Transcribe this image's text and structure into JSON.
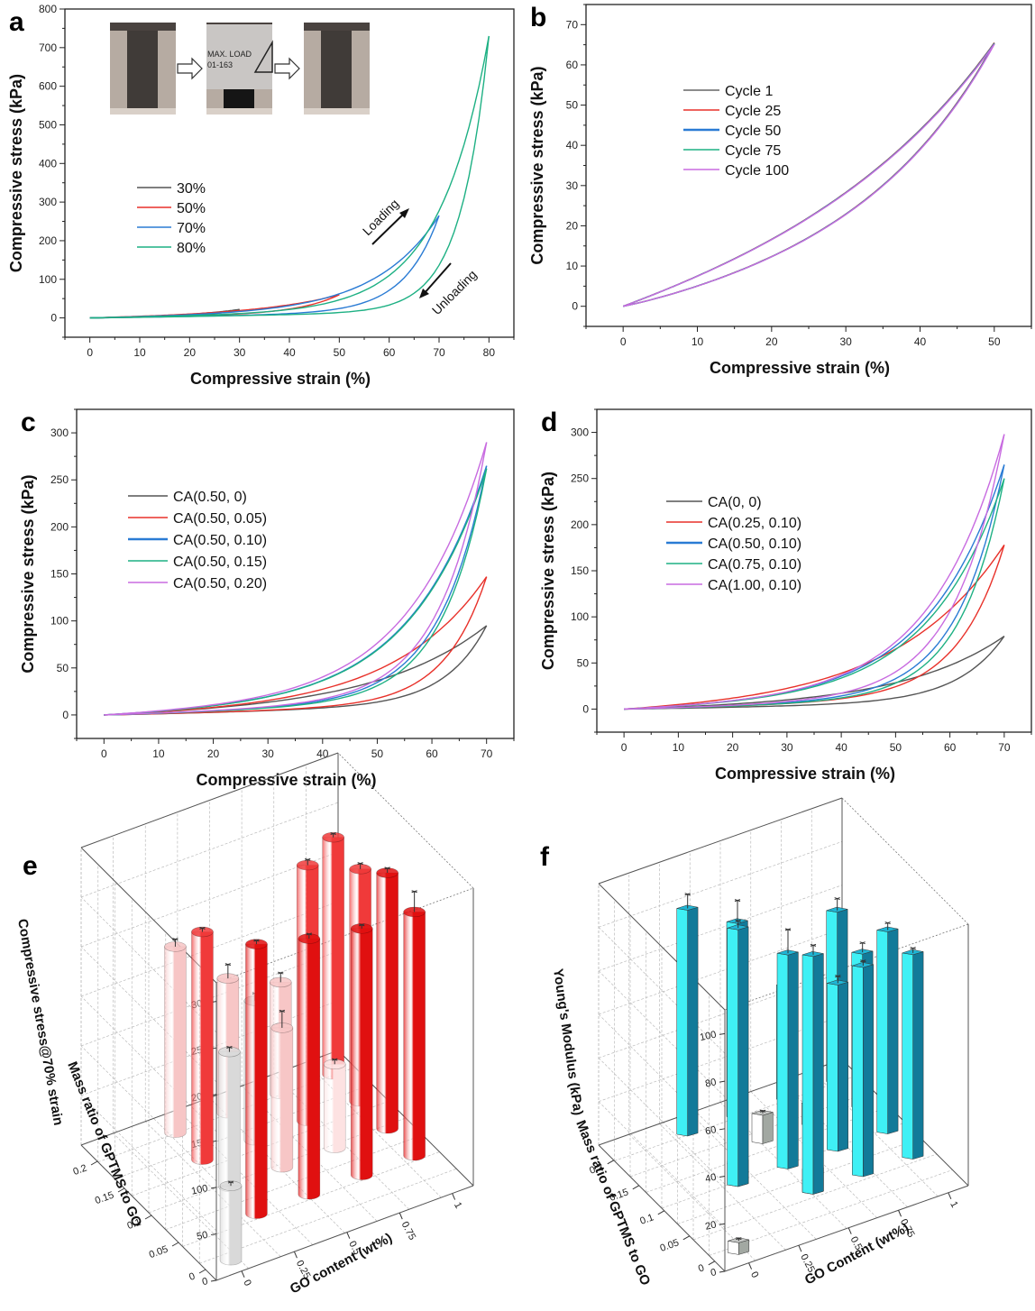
{
  "panels": [
    {
      "id": "a",
      "chart_data": {
        "type": "line",
        "panel_label": "a",
        "xlabel": "Compressive strain (%)",
        "ylabel": "Compressive stress (kPa)",
        "xlim": [
          -5,
          85
        ],
        "ylim": [
          -50,
          800
        ],
        "xticks": [
          0,
          10,
          20,
          30,
          40,
          50,
          60,
          70,
          80
        ],
        "yticks": [
          0,
          100,
          200,
          300,
          400,
          500,
          600,
          700,
          800
        ],
        "legend": {
          "placement": "center-left"
        },
        "annotations": [
          "Loading",
          "Unloading"
        ],
        "inset": {
          "description": "photo sequence of sample before, during and after compression",
          "text_lines": [
            "MAX. LOAD",
            "01-163"
          ]
        },
        "series": [
          {
            "name": "30%",
            "color": "#555555",
            "max_strain": 30,
            "peak_stress": 22,
            "loading_exp": 3.2,
            "unloading_exp": 6,
            "linear_frac": 0.35
          },
          {
            "name": "50%",
            "color": "#e8312a",
            "max_strain": 50,
            "peak_stress": 60,
            "loading_exp": 3.2,
            "unloading_exp": 6,
            "linear_frac": 0.2
          },
          {
            "name": "70%",
            "color": "#2a7bd4",
            "max_strain": 70,
            "peak_stress": 265,
            "loading_exp": 5.5,
            "unloading_exp": 10,
            "linear_frac": 0.06
          },
          {
            "name": "80%",
            "color": "#1db083",
            "max_strain": 80,
            "peak_stress": 730,
            "loading_exp": 8,
            "unloading_exp": 14,
            "linear_frac": 0.025
          }
        ]
      }
    },
    {
      "id": "b",
      "chart_data": {
        "type": "line",
        "panel_label": "b",
        "xlabel": "Compressive strain (%)",
        "ylabel": "Compressive stress (kPa)",
        "xlim": [
          -5,
          55
        ],
        "ylim": [
          -5,
          75
        ],
        "xticks": [
          0,
          10,
          20,
          30,
          40,
          50
        ],
        "yticks": [
          0,
          10,
          20,
          30,
          40,
          50,
          60,
          70
        ],
        "legend": {
          "placement": "top-left"
        },
        "series": [
          {
            "name": "Cycle 1",
            "color": "#666666",
            "max_strain": 50,
            "peak_stress": 65.5,
            "loading_exp": 2.2,
            "unloading_exp": 3,
            "linear_frac": 0.35
          },
          {
            "name": "Cycle 25",
            "color": "#e8312a",
            "max_strain": 50,
            "peak_stress": 65.4,
            "loading_exp": 2.2,
            "unloading_exp": 3,
            "linear_frac": 0.35
          },
          {
            "name": "Cycle 50",
            "color": "#2a7bd4",
            "max_strain": 50,
            "peak_stress": 65.3,
            "loading_exp": 2.2,
            "unloading_exp": 3,
            "linear_frac": 0.35
          },
          {
            "name": "Cycle 75",
            "color": "#1db083",
            "max_strain": 50,
            "peak_stress": 65.2,
            "loading_exp": 2.2,
            "unloading_exp": 3,
            "linear_frac": 0.35
          },
          {
            "name": "Cycle 100",
            "color": "#c86be0",
            "max_strain": 50,
            "peak_stress": 65.1,
            "loading_exp": 2.2,
            "unloading_exp": 3,
            "linear_frac": 0.35
          }
        ]
      }
    },
    {
      "id": "c",
      "chart_data": {
        "type": "line",
        "panel_label": "c",
        "xlabel": "Compressive strain (%)",
        "ylabel": "Compressive stress (kPa)",
        "xlim": [
          -5,
          75
        ],
        "ylim": [
          -25,
          325
        ],
        "xticks": [
          0,
          10,
          20,
          30,
          40,
          50,
          60,
          70
        ],
        "yticks": [
          0,
          50,
          100,
          150,
          200,
          250,
          300
        ],
        "legend": {
          "placement": "top-left"
        },
        "series": [
          {
            "name": "CA(0.50, 0)",
            "color": "#555555",
            "max_strain": 70,
            "peak_stress": 95,
            "loading_exp": 3.6,
            "unloading_exp": 9,
            "linear_frac": 0.12
          },
          {
            "name": "CA(0.50, 0.05)",
            "color": "#e8312a",
            "max_strain": 70,
            "peak_stress": 147,
            "loading_exp": 4.2,
            "unloading_exp": 9,
            "linear_frac": 0.08
          },
          {
            "name": "CA(0.50, 0.10)",
            "color": "#2a7bd4",
            "max_strain": 70,
            "peak_stress": 265,
            "loading_exp": 5,
            "unloading_exp": 8,
            "linear_frac": 0.06
          },
          {
            "name": "CA(0.50, 0.15)",
            "color": "#1db083",
            "max_strain": 70,
            "peak_stress": 262,
            "loading_exp": 5,
            "unloading_exp": 8.5,
            "linear_frac": 0.06
          },
          {
            "name": "CA(0.50, 0.20)",
            "color": "#c86be0",
            "max_strain": 70,
            "peak_stress": 290,
            "loading_exp": 5,
            "unloading_exp": 8,
            "linear_frac": 0.06
          }
        ]
      }
    },
    {
      "id": "d",
      "chart_data": {
        "type": "line",
        "panel_label": "d",
        "xlabel": "Compressive strain (%)",
        "ylabel": "Compressive stress (kPa)",
        "xlim": [
          -5,
          75
        ],
        "ylim": [
          -25,
          325
        ],
        "xticks": [
          0,
          10,
          20,
          30,
          40,
          50,
          60,
          70
        ],
        "yticks": [
          0,
          50,
          100,
          150,
          200,
          250,
          300
        ],
        "legend": {
          "placement": "top-left"
        },
        "series": [
          {
            "name": "CA(0, 0)",
            "color": "#555555",
            "max_strain": 70,
            "peak_stress": 79,
            "loading_exp": 3.8,
            "unloading_exp": 8,
            "linear_frac": 0.1
          },
          {
            "name": "CA(0.25, 0.10)",
            "color": "#e8312a",
            "max_strain": 70,
            "peak_stress": 178,
            "loading_exp": 3.6,
            "unloading_exp": 8,
            "linear_frac": 0.07
          },
          {
            "name": "CA(0.50, 0.10)",
            "color": "#2a7bd4",
            "max_strain": 70,
            "peak_stress": 265,
            "loading_exp": 5,
            "unloading_exp": 8,
            "linear_frac": 0.05
          },
          {
            "name": "CA(0.75, 0.10)",
            "color": "#1db083",
            "max_strain": 70,
            "peak_stress": 250,
            "loading_exp": 5,
            "unloading_exp": 8.5,
            "linear_frac": 0.05
          },
          {
            "name": "CA(1.00, 0.10)",
            "color": "#c86be0",
            "max_strain": 70,
            "peak_stress": 298,
            "loading_exp": 5.2,
            "unloading_exp": 7.5,
            "linear_frac": 0.045
          }
        ]
      }
    },
    {
      "id": "e",
      "chart_data": {
        "type": "bar3d",
        "panel_label": "e",
        "bar_shape": "cylinder",
        "zlabel": "Compressive stress@70% strain",
        "xlabel": "GO content (wt%)",
        "ylabel": "Mass ratio of GPTMS to GO",
        "xticks": [
          0,
          0.25,
          0.5,
          0.75,
          1
        ],
        "yticks": [
          0,
          0.05,
          0.1,
          0.15,
          0.2
        ],
        "zticks": [
          0,
          50,
          100,
          150,
          200,
          250,
          300
        ],
        "zlim": [
          0,
          320
        ],
        "bars": [
          {
            "x": 0,
            "y": 0,
            "value": 80,
            "error": 4,
            "color": "#d9d9d9"
          },
          {
            "x": 0.25,
            "y": 0.1,
            "value": 145,
            "error": 5,
            "color": "#d9d9d9"
          },
          {
            "x": 0.5,
            "y": 0.15,
            "value": 150,
            "error": 8,
            "color": "#d9d9d9"
          },
          {
            "x": 0.25,
            "y": 0.2,
            "value": 200,
            "error": 8,
            "color": "#f7c6c6"
          },
          {
            "x": 0.5,
            "y": 0.2,
            "value": 145,
            "error": 15,
            "color": "#f7c6c6"
          },
          {
            "x": 0.75,
            "y": 0.2,
            "value": 120,
            "error": 10,
            "color": "#f7c6c6"
          },
          {
            "x": 0.5,
            "y": 0.1,
            "value": 150,
            "error": 18,
            "color": "#f7c6c6"
          },
          {
            "x": 0.75,
            "y": 0.1,
            "value": 90,
            "error": 5,
            "color": "#fde2e2"
          },
          {
            "x": 0.75,
            "y": 0.05,
            "value": 265,
            "error": 4,
            "color": "#e01010"
          },
          {
            "x": 1,
            "y": 0.05,
            "value": 262,
            "error": 22,
            "color": "#e01010"
          },
          {
            "x": 1,
            "y": 0.1,
            "value": 275,
            "error": 5,
            "color": "#e01010"
          },
          {
            "x": 0.25,
            "y": 0.05,
            "value": 290,
            "error": 4,
            "color": "#e01010"
          },
          {
            "x": 0.5,
            "y": 0.05,
            "value": 275,
            "error": 5,
            "color": "#e01010"
          },
          {
            "x": 0.75,
            "y": 0.15,
            "value": 275,
            "error": 6,
            "color": "#f03a3a"
          },
          {
            "x": 1,
            "y": 0.15,
            "value": 250,
            "error": 6,
            "color": "#f03a3a"
          },
          {
            "x": 1,
            "y": 0.2,
            "value": 255,
            "error": 4,
            "color": "#f03a3a"
          },
          {
            "x": 0.25,
            "y": 0.15,
            "value": 245,
            "error": 4,
            "color": "#f03a3a"
          }
        ]
      }
    },
    {
      "id": "f",
      "chart_data": {
        "type": "bar3d",
        "panel_label": "f",
        "bar_shape": "box",
        "zlabel": "Young's Modulus (kPa)",
        "xlabel": "GO Content (wt%)",
        "ylabel": "Mass ratio of GPTMS to GO",
        "xticks": [
          0,
          0.25,
          0.5,
          0.75,
          1
        ],
        "yticks": [
          0,
          0.05,
          0.1,
          0.15,
          0.2
        ],
        "zticks": [
          0,
          20,
          40,
          60,
          80,
          100
        ],
        "zlim": [
          0,
          110
        ],
        "bars": [
          {
            "x": 0,
            "y": 0,
            "value": 5,
            "error": 1,
            "color": "#b8bdb8"
          },
          {
            "x": 0.25,
            "y": 0.1,
            "value": 10,
            "error": 1,
            "color": "#b8bdb8"
          },
          {
            "x": 0.5,
            "y": 0.15,
            "value": 12,
            "error": 1,
            "color": "#b8bdb8"
          },
          {
            "x": 0.5,
            "y": 0.05,
            "value": 10,
            "error": 2,
            "color": "#b8bdb8"
          },
          {
            "x": 0.75,
            "y": 0.15,
            "value": 9,
            "error": 1,
            "color": "#b8bdb8"
          },
          {
            "x": 0.25,
            "y": 0.2,
            "value": 95,
            "error": 6,
            "color": "#1ea7c9"
          },
          {
            "x": 0.5,
            "y": 0.2,
            "value": 82,
            "error": 9,
            "color": "#1ea7c9"
          },
          {
            "x": 0.75,
            "y": 0.2,
            "value": 48,
            "error": 3,
            "color": "#1ea7c9"
          },
          {
            "x": 0.25,
            "y": 0.1,
            "value": 108,
            "error": 3,
            "color": "#1ea7c9"
          },
          {
            "x": 0.5,
            "y": 0.1,
            "value": 90,
            "error": 10,
            "color": "#1ea7c9"
          },
          {
            "x": 0.75,
            "y": 0.1,
            "value": 70,
            "error": 3,
            "color": "#1ea7c9"
          },
          {
            "x": 0.5,
            "y": 0.05,
            "value": 100,
            "error": 4,
            "color": "#1ea7c9"
          },
          {
            "x": 0.75,
            "y": 0.05,
            "value": 88,
            "error": 2,
            "color": "#1ea7c9"
          },
          {
            "x": 1,
            "y": 0.05,
            "value": 86,
            "error": 2,
            "color": "#1ea7c9"
          },
          {
            "x": 1,
            "y": 0.1,
            "value": 85,
            "error": 3,
            "color": "#1ea7c9"
          },
          {
            "x": 1,
            "y": 0.15,
            "value": 65,
            "error": 4,
            "color": "#1ea7c9"
          },
          {
            "x": 1,
            "y": 0.2,
            "value": 72,
            "error": 5,
            "color": "#1ea7c9"
          }
        ]
      }
    }
  ]
}
